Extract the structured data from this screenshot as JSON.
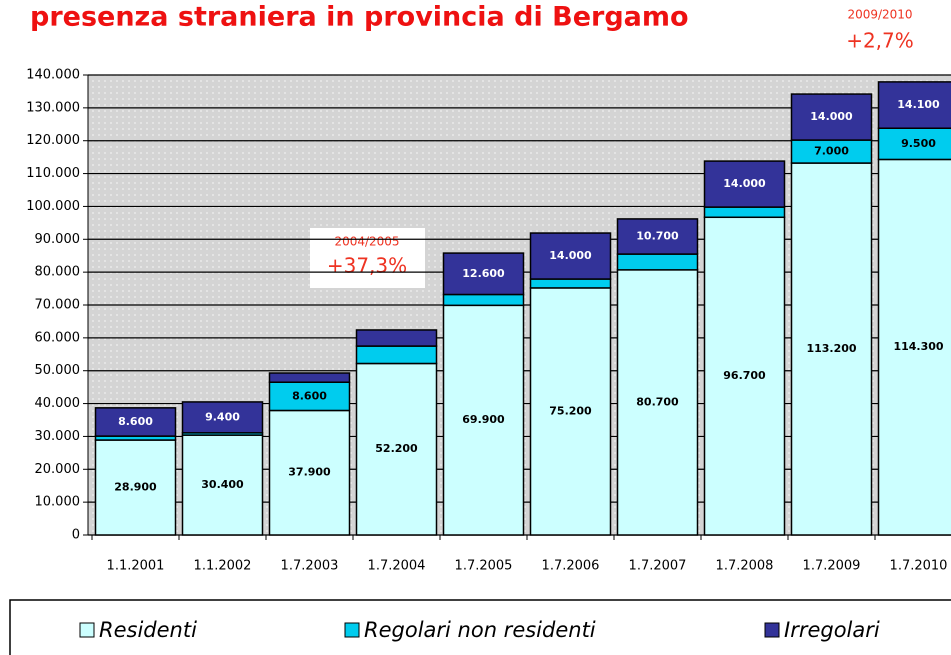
{
  "chart_data": {
    "type": "bar",
    "stacked": true,
    "title": "presenza straniera in provincia di Bergamo",
    "annotations": [
      {
        "period": "2004/2005",
        "change": "+37,3%"
      },
      {
        "period": "2009/2010",
        "change": "+2,7%"
      }
    ],
    "categories": [
      "1.1.2001",
      "1.1.2002",
      "1.7.2003",
      "1.7.2004",
      "1.7.2005",
      "1.7.2006",
      "1.7.2007",
      "1.7.2008",
      "1.7.2009",
      "1.7.2010"
    ],
    "series": [
      {
        "name": "Residenti",
        "color": "#ccffff",
        "label_color": "#000000",
        "values": [
          28900,
          30400,
          37900,
          52200,
          69900,
          75200,
          80700,
          96700,
          113200,
          114300
        ],
        "value_labels": [
          "28.900",
          "30.400",
          "37.900",
          "52.200",
          "69.900",
          "75.200",
          "80.700",
          "96.700",
          "113.200",
          "114.300"
        ]
      },
      {
        "name": "Regolari non residenti",
        "color": "#00ccee",
        "label_color": "#000000",
        "values": [
          1200,
          700,
          8600,
          5300,
          3300,
          2700,
          4800,
          3100,
          7000,
          9500
        ],
        "value_labels": [
          null,
          null,
          "8.600",
          null,
          null,
          null,
          null,
          null,
          "7.000",
          "9.500"
        ]
      },
      {
        "name": "Irregolari",
        "color": "#333399",
        "label_color": "#ffffff",
        "values": [
          8600,
          9400,
          2800,
          4900,
          12600,
          14000,
          10700,
          14000,
          14000,
          14100
        ],
        "value_labels": [
          "8.600",
          "9.400",
          null,
          null,
          "12.600",
          "14.000",
          "10.700",
          "14.000",
          "14.000",
          "14.100"
        ]
      }
    ],
    "ylim": [
      0,
      140000
    ],
    "yticks": [
      0,
      {
        "value": 10000,
        "label": "10.000"
      },
      {
        "value": 20000,
        "label": "20.000"
      },
      {
        "value": 30000,
        "label": "30.000"
      },
      {
        "value": 40000,
        "label": "40.000"
      },
      {
        "value": 50000,
        "label": "50.000"
      },
      {
        "value": 60000,
        "label": "60.000"
      },
      {
        "value": 70000,
        "label": "70.000"
      },
      {
        "value": 80000,
        "label": "80.000"
      },
      {
        "value": 90000,
        "label": "90.000"
      },
      {
        "value": 100000,
        "label": "100.000"
      },
      {
        "value": 110000,
        "label": "110.000"
      },
      {
        "value": 120000,
        "label": "120.000"
      },
      {
        "value": 130000,
        "label": "130.000"
      },
      {
        "value": 140000,
        "label": "140.000"
      }
    ],
    "grid": true,
    "legend": "bottom"
  }
}
